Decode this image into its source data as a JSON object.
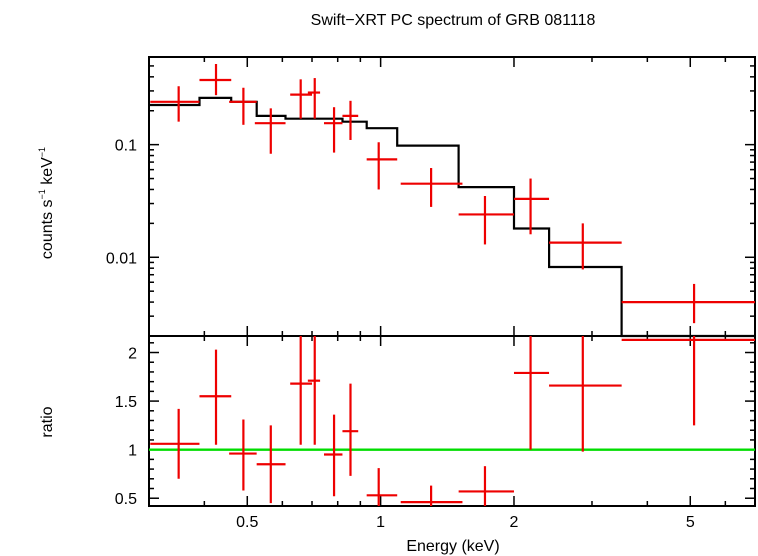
{
  "title": "Swift−XRT PC spectrum of GRB 081118",
  "colors": {
    "data": "#ee0000",
    "model": "#000000",
    "unity": "#00dd00",
    "axis": "#000000"
  },
  "chart_data": [
    {
      "type": "scatter",
      "panel": "spectrum",
      "ylabel_base": "counts s",
      "ylabel_exp1": "−1",
      "ylabel_mid": " keV",
      "ylabel_exp2": "−1",
      "xscale": "log",
      "yscale": "log",
      "xlim": [
        0.3,
        7.0
      ],
      "ylim": [
        0.002,
        0.6
      ],
      "yticks": [
        {
          "v": 0.1,
          "label": "0.1"
        },
        {
          "v": 0.01,
          "label": "0.01"
        }
      ],
      "data": [
        {
          "x": 0.35,
          "xlo": 0.302,
          "xhi": 0.39,
          "y": 0.24,
          "ylo": 0.16,
          "yhi": 0.33
        },
        {
          "x": 0.425,
          "xlo": 0.39,
          "xhi": 0.46,
          "y": 0.375,
          "ylo": 0.275,
          "yhi": 0.52
        },
        {
          "x": 0.49,
          "xlo": 0.455,
          "xhi": 0.525,
          "y": 0.24,
          "ylo": 0.15,
          "yhi": 0.32
        },
        {
          "x": 0.565,
          "xlo": 0.52,
          "xhi": 0.61,
          "y": 0.155,
          "ylo": 0.083,
          "yhi": 0.21
        },
        {
          "x": 0.66,
          "xlo": 0.625,
          "xhi": 0.7,
          "y": 0.278,
          "ylo": 0.17,
          "yhi": 0.38
        },
        {
          "x": 0.71,
          "xlo": 0.685,
          "xhi": 0.73,
          "y": 0.29,
          "ylo": 0.17,
          "yhi": 0.39
        },
        {
          "x": 0.785,
          "xlo": 0.745,
          "xhi": 0.82,
          "y": 0.155,
          "ylo": 0.085,
          "yhi": 0.215
        },
        {
          "x": 0.855,
          "xlo": 0.82,
          "xhi": 0.89,
          "y": 0.18,
          "ylo": 0.11,
          "yhi": 0.245
        },
        {
          "x": 0.99,
          "xlo": 0.93,
          "xhi": 1.09,
          "y": 0.074,
          "ylo": 0.04,
          "yhi": 0.105
        },
        {
          "x": 1.3,
          "xlo": 1.11,
          "xhi": 1.53,
          "y": 0.045,
          "ylo": 0.028,
          "yhi": 0.062
        },
        {
          "x": 1.72,
          "xlo": 1.5,
          "xhi": 2.0,
          "y": 0.024,
          "ylo": 0.013,
          "yhi": 0.035
        },
        {
          "x": 2.18,
          "xlo": 2.0,
          "xhi": 2.4,
          "y": 0.033,
          "ylo": 0.016,
          "yhi": 0.05
        },
        {
          "x": 2.86,
          "xlo": 2.4,
          "xhi": 3.5,
          "y": 0.0135,
          "ylo": 0.0078,
          "yhi": 0.02
        },
        {
          "x": 5.1,
          "xlo": 3.5,
          "xhi": 7.0,
          "y": 0.004,
          "ylo": 0.0026,
          "yhi": 0.0058
        }
      ],
      "model_steps": [
        {
          "xlo": 0.3,
          "xhi": 0.39,
          "y": 0.225
        },
        {
          "xlo": 0.39,
          "xhi": 0.46,
          "y": 0.26
        },
        {
          "xlo": 0.46,
          "xhi": 0.525,
          "y": 0.24
        },
        {
          "xlo": 0.525,
          "xhi": 0.61,
          "y": 0.18
        },
        {
          "xlo": 0.61,
          "xhi": 0.7,
          "y": 0.17
        },
        {
          "xlo": 0.7,
          "xhi": 0.82,
          "y": 0.17
        },
        {
          "xlo": 0.82,
          "xhi": 0.93,
          "y": 0.16
        },
        {
          "xlo": 0.93,
          "xhi": 1.09,
          "y": 0.14
        },
        {
          "xlo": 1.09,
          "xhi": 1.5,
          "y": 0.098
        },
        {
          "xlo": 1.5,
          "xhi": 2.0,
          "y": 0.042
        },
        {
          "xlo": 2.0,
          "xhi": 2.4,
          "y": 0.018
        },
        {
          "xlo": 2.4,
          "xhi": 3.5,
          "y": 0.0082
        },
        {
          "xlo": 3.5,
          "xhi": 7.0,
          "y": 0.0015
        }
      ]
    },
    {
      "type": "scatter",
      "panel": "ratio",
      "ylabel": "ratio",
      "xlabel": "Energy (keV)",
      "xscale": "log",
      "yscale": "linear",
      "xlim": [
        0.3,
        7.0
      ],
      "ylim": [
        0.42,
        2.17
      ],
      "yticks": [
        {
          "v": 0.5,
          "label": "0.5"
        },
        {
          "v": 1,
          "label": "1"
        },
        {
          "v": 1.5,
          "label": "1.5"
        },
        {
          "v": 2,
          "label": "2"
        }
      ],
      "xticks": [
        {
          "v": 0.5,
          "label": "0.5"
        },
        {
          "v": 1,
          "label": "1"
        },
        {
          "v": 2,
          "label": "2"
        },
        {
          "v": 5,
          "label": "5"
        }
      ],
      "unity": 1,
      "data": [
        {
          "x": 0.35,
          "xlo": 0.302,
          "xhi": 0.39,
          "y": 1.06,
          "ylo": 0.7,
          "yhi": 1.42
        },
        {
          "x": 0.425,
          "xlo": 0.39,
          "xhi": 0.46,
          "y": 1.55,
          "ylo": 1.05,
          "yhi": 2.03
        },
        {
          "x": 0.49,
          "xlo": 0.455,
          "xhi": 0.525,
          "y": 0.96,
          "ylo": 0.58,
          "yhi": 1.31
        },
        {
          "x": 0.565,
          "xlo": 0.525,
          "xhi": 0.61,
          "y": 0.85,
          "ylo": 0.45,
          "yhi": 1.25
        },
        {
          "x": 0.66,
          "xlo": 0.625,
          "xhi": 0.7,
          "y": 1.68,
          "ylo": 1.05,
          "yhi": 2.25
        },
        {
          "x": 0.71,
          "xlo": 0.685,
          "xhi": 0.73,
          "y": 1.71,
          "ylo": 1.05,
          "yhi": 2.25
        },
        {
          "x": 0.785,
          "xlo": 0.745,
          "xhi": 0.82,
          "y": 0.95,
          "ylo": 0.52,
          "yhi": 1.36
        },
        {
          "x": 0.855,
          "xlo": 0.82,
          "xhi": 0.89,
          "y": 1.19,
          "ylo": 0.73,
          "yhi": 1.68
        },
        {
          "x": 0.99,
          "xlo": 0.93,
          "xhi": 1.09,
          "y": 0.53,
          "ylo": 0.3,
          "yhi": 0.81
        },
        {
          "x": 1.3,
          "xlo": 1.11,
          "xhi": 1.53,
          "y": 0.46,
          "ylo": 0.3,
          "yhi": 0.63
        },
        {
          "x": 1.72,
          "xlo": 1.5,
          "xhi": 2.0,
          "y": 0.57,
          "ylo": 0.32,
          "yhi": 0.83
        },
        {
          "x": 2.18,
          "xlo": 2.0,
          "xhi": 2.4,
          "y": 1.79,
          "ylo": 1.0,
          "yhi": 2.25
        },
        {
          "x": 2.86,
          "xlo": 2.4,
          "xhi": 3.5,
          "y": 1.66,
          "ylo": 0.98,
          "yhi": 2.25
        },
        {
          "x": 5.1,
          "xlo": 3.5,
          "xhi": 7.0,
          "y": 2.13,
          "ylo": 1.25,
          "yhi": 2.25
        }
      ]
    }
  ]
}
